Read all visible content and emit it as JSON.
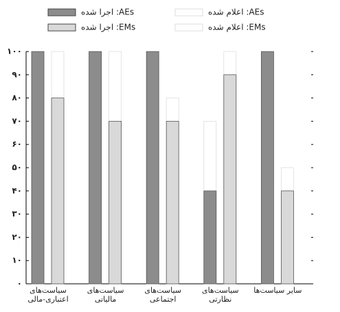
{
  "chart_data": {
    "type": "bar",
    "categories": [
      "سیاست‌های اعتباری-مالی",
      "سیاست‌های مالیاتی",
      "سیاست‌های اجتماعی",
      "سیاست‌های نظارتی",
      "سایر سیاست‌ها"
    ],
    "series": [
      {
        "name": "AEs: اعلام شده",
        "color": "#ffffff",
        "values": [
          100,
          100,
          100,
          70,
          100
        ]
      },
      {
        "name": "AEs: اجرا شده",
        "color": "#8c8c8c",
        "values": [
          100,
          100,
          100,
          40,
          100
        ]
      },
      {
        "name": "EMs: اعلام شده",
        "color": "#ffffff",
        "values": [
          100,
          100,
          80,
          100,
          50
        ]
      },
      {
        "name": "EMs: اجرا شده",
        "color": "#d9d9d9",
        "values": [
          80,
          70,
          70,
          90,
          40
        ]
      }
    ],
    "ylim": [
      0,
      100
    ],
    "yticks": [
      {
        "value": 0,
        "label": "۰"
      },
      {
        "value": 10,
        "label": "۱۰"
      },
      {
        "value": 20,
        "label": "۲۰"
      },
      {
        "value": 30,
        "label": "۳۰"
      },
      {
        "value": 40,
        "label": "۴۰"
      },
      {
        "value": 50,
        "label": "۵۰"
      },
      {
        "value": 60,
        "label": "۶۰"
      },
      {
        "value": 70,
        "label": "۷۰"
      },
      {
        "value": 80,
        "label": "۸۰"
      },
      {
        "value": 90,
        "label": "۹۰"
      },
      {
        "value": 100,
        "label": "۱۰۰"
      }
    ],
    "grid": false
  }
}
